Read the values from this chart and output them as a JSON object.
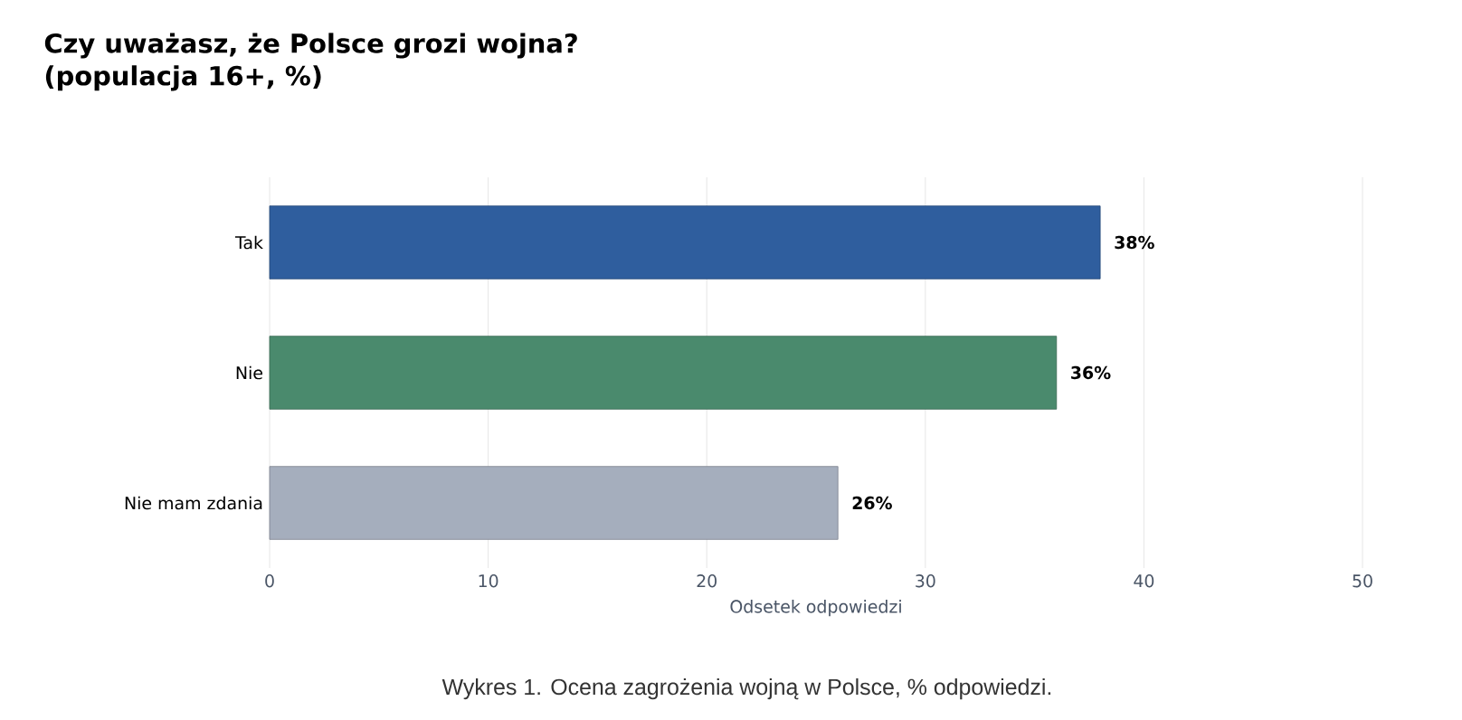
{
  "chart_data": {
    "type": "bar",
    "orientation": "horizontal",
    "title": "Czy uważasz, że Polsce grozi wojna?\n(populacja 16+, %)",
    "categories": [
      "Tak",
      "Nie",
      "Nie mam zdania"
    ],
    "values": [
      38,
      36,
      26
    ],
    "colors": [
      "#2f5e9e",
      "#4a8a6d",
      "#a5aebd"
    ],
    "value_labels": [
      "38%",
      "36%",
      "26%"
    ],
    "xlabel": "Odsetek odpowiedzi",
    "xlim": [
      0,
      50
    ],
    "xticks": [
      0,
      10,
      20,
      30,
      40,
      50
    ],
    "grid": "x",
    "annotations": [
      "Wykres 1. Ocena zagrożenia wojną w Polsce, % odpowiedzi."
    ]
  }
}
